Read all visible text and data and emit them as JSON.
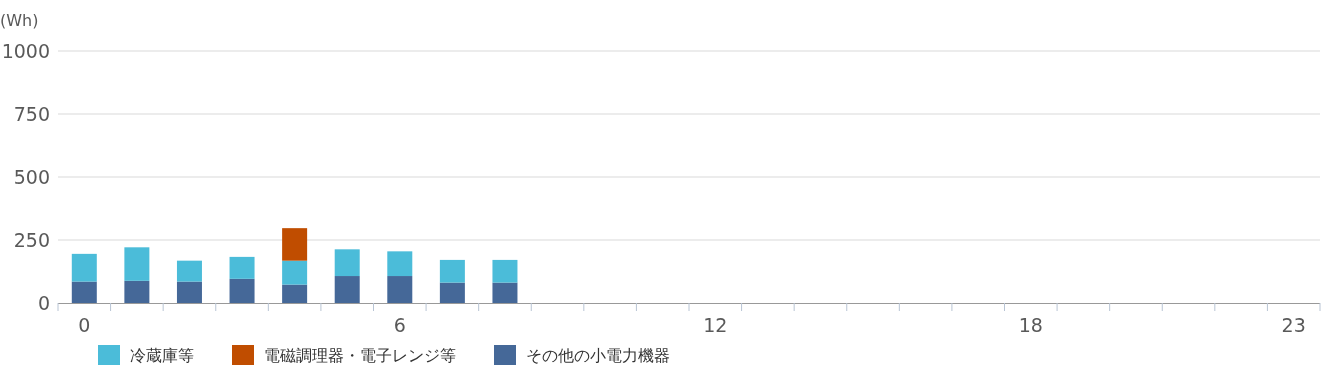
{
  "chart_data": {
    "type": "bar",
    "stacked": true,
    "ylabel": "(Wh)",
    "categories": [
      "0",
      null,
      null,
      null,
      null,
      null,
      "6",
      null,
      null,
      null,
      null,
      null,
      "12",
      null,
      null,
      null,
      null,
      null,
      "18",
      null,
      null,
      null,
      null,
      "23"
    ],
    "series": [
      {
        "name": "その他の小電力機器",
        "color": "#456898",
        "values": [
          85,
          88,
          85,
          96,
          73,
          107,
          107,
          81,
          81,
          null,
          null,
          null,
          null,
          null,
          null,
          null,
          null,
          null,
          null,
          null,
          null,
          null,
          null,
          null
        ]
      },
      {
        "name": "冷蔵庫等",
        "color": "#4bbcd9",
        "values": [
          110,
          133,
          83,
          87,
          95,
          106,
          98,
          90,
          90,
          null,
          null,
          null,
          null,
          null,
          null,
          null,
          null,
          null,
          null,
          null,
          null,
          null,
          null,
          null
        ]
      },
      {
        "name": "電磁調理器・電子レンジ等",
        "color": "#c04d00",
        "values": [
          null,
          null,
          null,
          null,
          129,
          null,
          null,
          null,
          null,
          null,
          null,
          null,
          null,
          null,
          null,
          null,
          null,
          null,
          null,
          null,
          null,
          null,
          null,
          null
        ]
      }
    ],
    "ylim": [
      0,
      1000
    ],
    "yticks": [
      0,
      250,
      500,
      750,
      1000
    ],
    "grid": "y",
    "legend": "bottom"
  }
}
